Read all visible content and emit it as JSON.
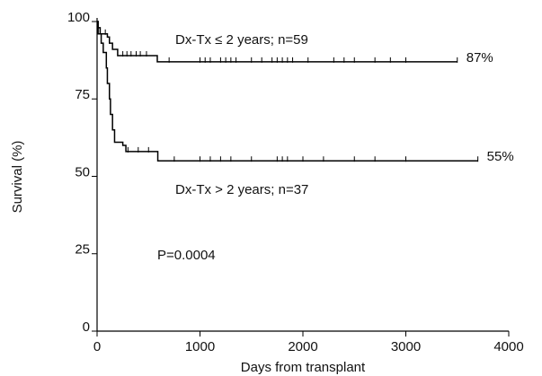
{
  "chart_data": {
    "type": "survival",
    "xlabel": "Days from transplant",
    "ylabel": "Survival (%)",
    "xlim": [
      0,
      4000
    ],
    "xticks": [
      0,
      1000,
      2000,
      3000,
      4000
    ],
    "ylim": [
      0,
      100
    ],
    "yticks": [
      0,
      25,
      50,
      75,
      100
    ],
    "series": [
      {
        "name": "Dx-Tx ≤ 2 years; n=59",
        "color": "#000000",
        "end_label": "87%",
        "x": [
          0,
          10,
          30,
          100,
          120,
          150,
          200,
          585,
          3500
        ],
        "values": [
          100,
          98,
          96,
          95,
          93,
          91,
          89,
          87,
          87
        ],
        "censored_x": [
          80,
          250,
          290,
          330,
          380,
          420,
          480,
          700,
          1000,
          1050,
          1100,
          1200,
          1250,
          1300,
          1350,
          1500,
          1600,
          1700,
          1750,
          1800,
          1850,
          1900,
          2050,
          2300,
          2400,
          2500,
          2700,
          2850,
          3000,
          3500
        ]
      },
      {
        "name": "Dx-Tx > 2 years; n=37",
        "color": "#000000",
        "end_label": "55%",
        "x": [
          0,
          10,
          40,
          60,
          90,
          100,
          120,
          130,
          150,
          170,
          250,
          280,
          590,
          3700
        ],
        "values": [
          100,
          96,
          93,
          90,
          85,
          80,
          75,
          70,
          65,
          61,
          60,
          58,
          55,
          55
        ],
        "censored_x": [
          300,
          400,
          500,
          750,
          1000,
          1100,
          1200,
          1300,
          1500,
          1750,
          1800,
          1850,
          2000,
          2200,
          2500,
          2700,
          3000,
          3700
        ]
      }
    ],
    "annotations": [
      "P=0.0004"
    ]
  }
}
